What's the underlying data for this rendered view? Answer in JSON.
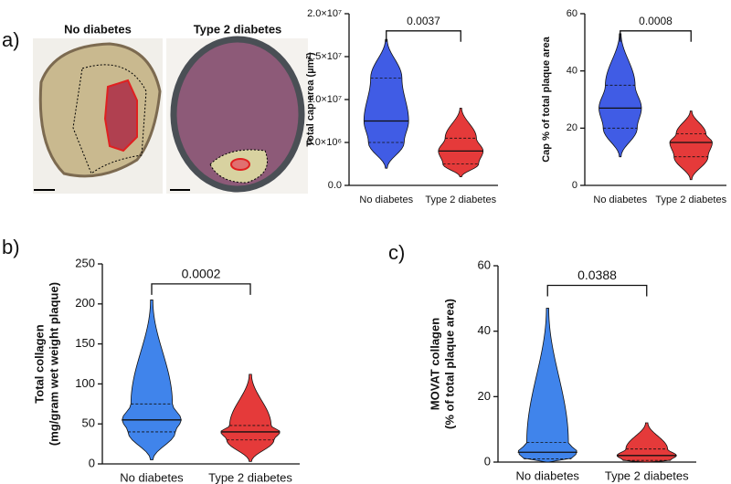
{
  "figure": {
    "panel_labels": [
      "a)",
      "b)",
      "c)"
    ],
    "image_labels": [
      "No diabetes",
      "Type 2 diabetes"
    ]
  },
  "chart_data": [
    {
      "type": "violin",
      "y_label": [
        "Total cap area (µm²)"
      ],
      "categories": [
        "No diabetes",
        "Type 2 diabetes"
      ],
      "colors": [
        "#1f3fe0",
        "#e01818"
      ],
      "stats": [
        {
          "min": 2000000,
          "q1": 5000000,
          "median": 7500000,
          "q3": 12500000,
          "max": 17000000
        },
        {
          "min": 1000000,
          "q1": 2500000,
          "median": 4000000,
          "q3": 5500000,
          "max": 9000000
        }
      ],
      "p_value": "0.0037",
      "ylim": [
        0,
        20000000
      ],
      "yticks": [
        {
          "value": 0,
          "label": "0.0"
        },
        {
          "value": 5000000,
          "label": "5.0×10⁶"
        },
        {
          "value": 10000000,
          "label": "1.0×10⁷"
        },
        {
          "value": 15000000,
          "label": "1.5×10⁷"
        },
        {
          "value": 20000000,
          "label": "2.0×10⁷"
        }
      ]
    },
    {
      "type": "violin",
      "y_label": [
        "Cap % of total plaque area"
      ],
      "categories": [
        "No diabetes",
        "Type 2 diabetes"
      ],
      "colors": [
        "#1f3fe0",
        "#e01818"
      ],
      "stats": [
        {
          "min": 10,
          "q1": 20,
          "median": 27,
          "q3": 35,
          "max": 53
        },
        {
          "min": 2,
          "q1": 10,
          "median": 15,
          "q3": 18,
          "max": 26
        }
      ],
      "p_value": "0.0008",
      "ylim": [
        0,
        60
      ],
      "yticks": [
        0,
        20,
        40,
        60
      ]
    },
    {
      "type": "violin",
      "y_label": [
        "Total collagen",
        "(mg/gram wet weight plaque)"
      ],
      "categories": [
        "No diabetes",
        "Type 2 diabetes"
      ],
      "colors": [
        "#1f6fe8",
        "#e01818"
      ],
      "stats": [
        {
          "min": 5,
          "q1": 40,
          "median": 55,
          "q3": 75,
          "max": 205
        },
        {
          "min": 3,
          "q1": 30,
          "median": 40,
          "q3": 48,
          "max": 112
        }
      ],
      "p_value": "0.0002",
      "ylim": [
        0,
        250
      ],
      "yticks": [
        0,
        50,
        100,
        150,
        200,
        250
      ]
    },
    {
      "type": "violin",
      "y_label": [
        "MOVAT collagen",
        "(% of total plaque area)"
      ],
      "categories": [
        "No diabetes",
        "Type 2 diabetes"
      ],
      "colors": [
        "#1f6fe8",
        "#e01818"
      ],
      "stats": [
        {
          "min": 0,
          "q1": 1,
          "median": 3,
          "q3": 6,
          "max": 47
        },
        {
          "min": 0,
          "q1": 0.5,
          "median": 2,
          "q3": 4,
          "max": 12
        }
      ],
      "p_value": "0.0388",
      "ylim": [
        0,
        60
      ],
      "yticks": [
        0,
        20,
        40,
        60
      ]
    }
  ]
}
